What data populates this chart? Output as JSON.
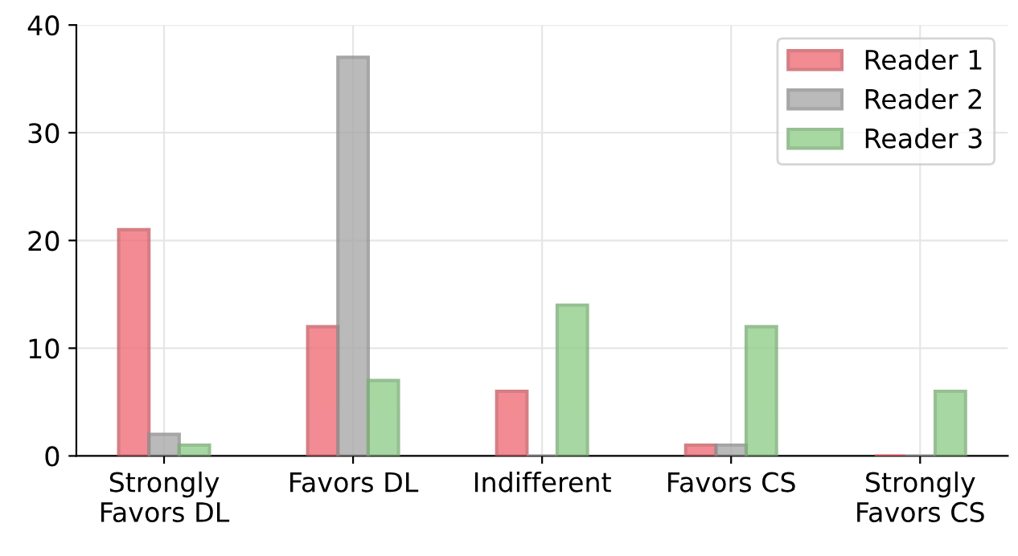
{
  "chart_data": {
    "type": "bar",
    "categories": [
      "Strongly\nFavors DL",
      "Favors DL",
      "Indifferent",
      "Favors CS",
      "Strongly\nFavors CS"
    ],
    "series": [
      {
        "name": "Reader 1",
        "color": "#ef6f78",
        "values": [
          21,
          12,
          6,
          1,
          0
        ]
      },
      {
        "name": "Reader 2",
        "color": "#a9a9a9",
        "values": [
          2,
          37,
          0,
          1,
          0
        ]
      },
      {
        "name": "Reader 3",
        "color": "#92cf8c",
        "values": [
          1,
          7,
          14,
          12,
          6
        ]
      }
    ],
    "ylim": [
      0,
      40
    ],
    "yticks": [
      0,
      10,
      20,
      30,
      40
    ],
    "grid": true,
    "legend": "top right"
  }
}
